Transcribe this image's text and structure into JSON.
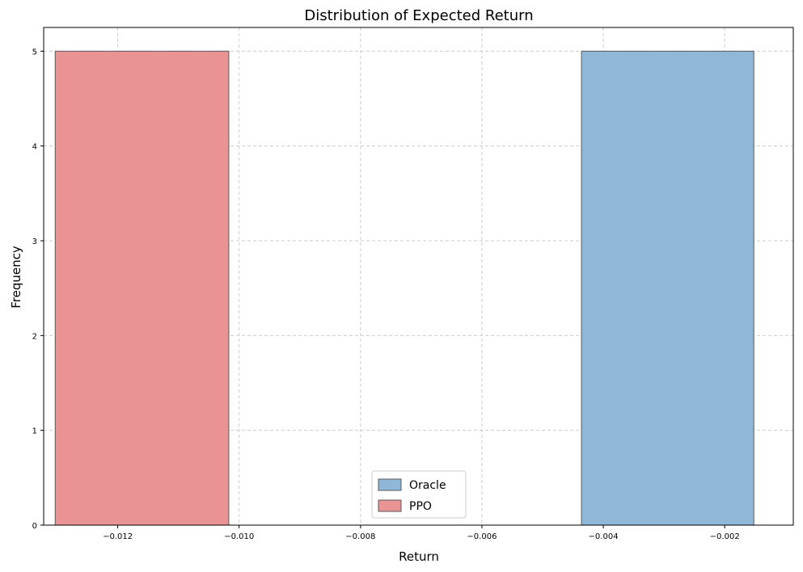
{
  "chart_data": {
    "type": "bar",
    "title": "Distribution of Expected Return",
    "xlabel": "Return",
    "ylabel": "Frequency",
    "xlim": [
      -0.01322,
      -0.00087
    ],
    "ylim": [
      0,
      5.25
    ],
    "grid": true,
    "legend_position": "bottom-center",
    "xticks": [
      -0.012,
      -0.01,
      -0.008,
      -0.006,
      -0.004,
      -0.002
    ],
    "xtick_labels": [
      "−0.012",
      "−0.010",
      "−0.008",
      "−0.006",
      "−0.004",
      "−0.002"
    ],
    "yticks": [
      0,
      1,
      2,
      3,
      4,
      5
    ],
    "ytick_labels": [
      "0",
      "1",
      "2",
      "3",
      "4",
      "5"
    ],
    "series": [
      {
        "name": "Oracle",
        "color": "#8fb8d8",
        "bins": [
          {
            "x0": -0.00436,
            "x1": -0.00152,
            "value": 5
          }
        ]
      },
      {
        "name": "PPO",
        "color": "#ea9395",
        "bins": [
          {
            "x0": -0.01303,
            "x1": -0.01017,
            "value": 5
          }
        ]
      }
    ]
  }
}
